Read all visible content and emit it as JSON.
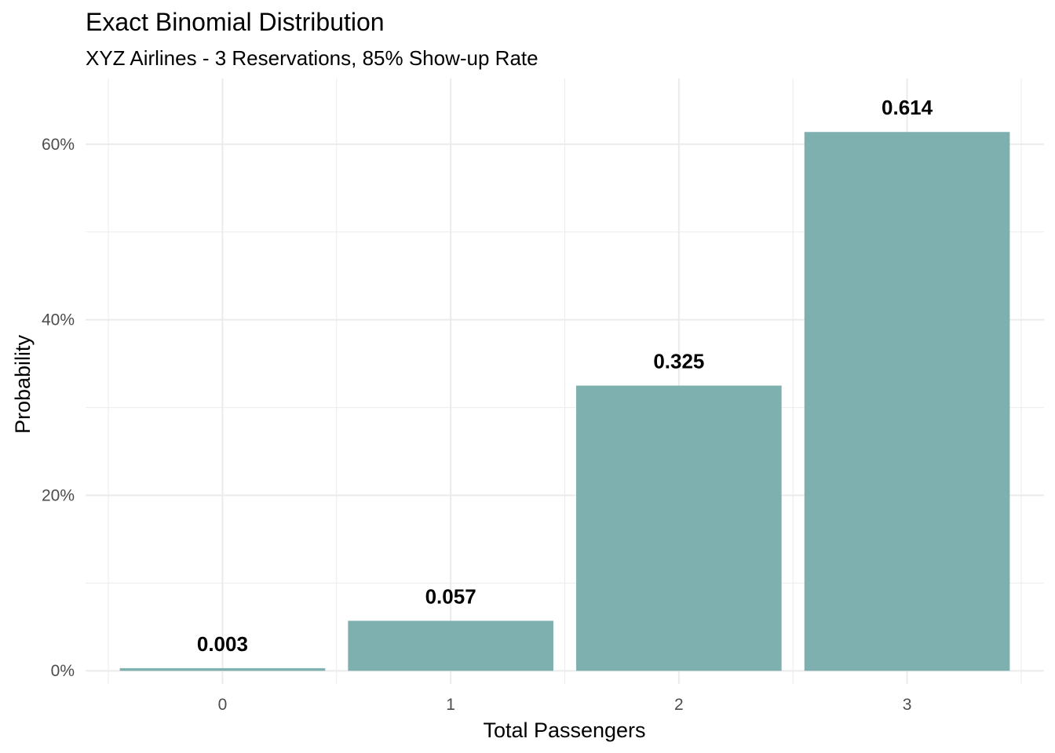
{
  "chart_data": {
    "type": "bar",
    "title": "Exact Binomial Distribution",
    "subtitle": "XYZ Airlines - 3 Reservations, 85% Show-up Rate",
    "xlabel": "Total Passengers",
    "ylabel": "Probability",
    "categories": [
      "0",
      "1",
      "2",
      "3"
    ],
    "values": [
      0.003,
      0.057,
      0.325,
      0.614
    ],
    "value_labels": [
      "0.003",
      "0.057",
      "0.325",
      "0.614"
    ],
    "ylim": [
      -0.015,
      0.675
    ],
    "yticks": [
      0,
      0.2,
      0.4,
      0.6
    ],
    "ytick_labels": [
      "0%",
      "20%",
      "40%",
      "60%"
    ],
    "minor_yticks": [
      0.1,
      0.3,
      0.5
    ],
    "grid": true,
    "legend": "none",
    "bar_color": "#7fb0b0",
    "gridline_color": "#ebebeb"
  }
}
